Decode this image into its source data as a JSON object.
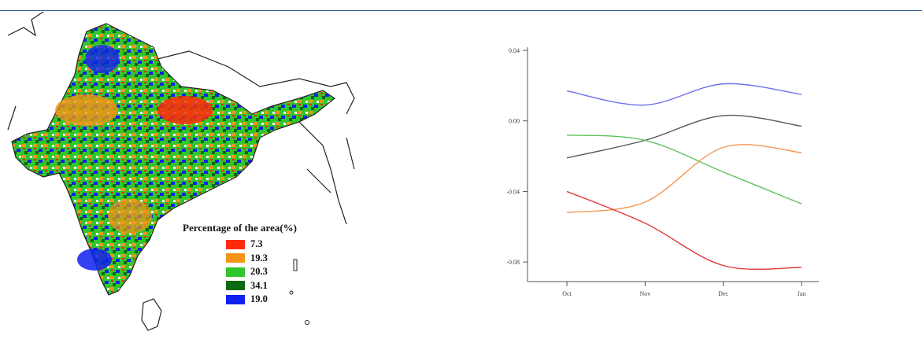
{
  "chart_data": [
    {
      "type": "heatmap",
      "legend": {
        "title": "Percentage of the area(%)",
        "entries": [
          {
            "label": "7.3",
            "color": "#ff2a0c"
          },
          {
            "label": "19.3",
            "color": "#f39418"
          },
          {
            "label": "20.3",
            "color": "#33c52c"
          },
          {
            "label": "34.1",
            "color": "#0b6a14"
          },
          {
            "label": "19.0",
            "color": "#1020f0"
          }
        ]
      }
    },
    {
      "type": "line",
      "categories": [
        "Oct",
        "Nov",
        "Dec",
        "Jan"
      ],
      "ylim": [
        -0.1,
        0.04
      ],
      "yticks": [
        "0.04",
        "0.00",
        "-0.04",
        "-0.08"
      ],
      "series": [
        {
          "color": "#7070ee",
          "values": [
            0.017,
            0.009,
            0.021,
            0.015
          ]
        },
        {
          "color": "#545a54",
          "values": [
            -0.021,
            -0.011,
            0.003,
            -0.003
          ]
        },
        {
          "color": "#5ec35e",
          "values": [
            -0.008,
            -0.011,
            -0.029,
            -0.047
          ]
        },
        {
          "color": "#f49650",
          "values": [
            -0.052,
            -0.046,
            -0.015,
            -0.018
          ]
        },
        {
          "color": "#e4393a",
          "values": [
            -0.04,
            -0.058,
            -0.082,
            -0.083
          ]
        }
      ]
    }
  ]
}
